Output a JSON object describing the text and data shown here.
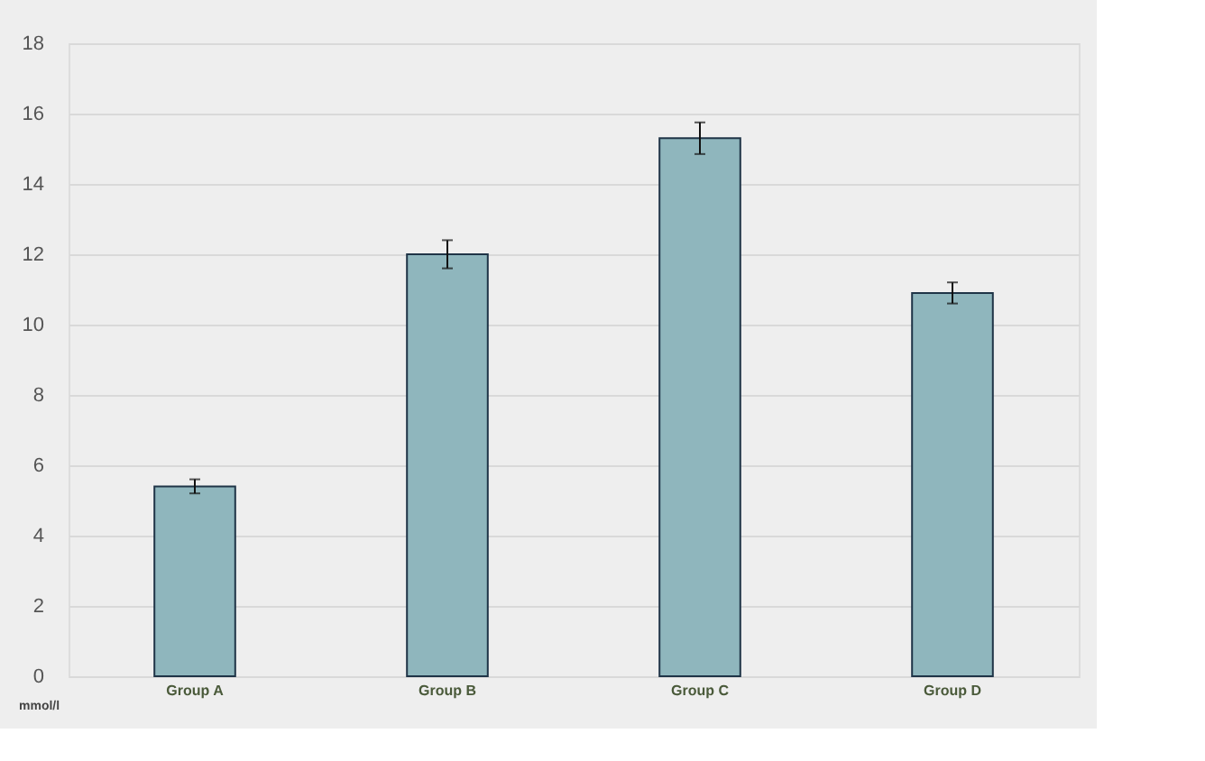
{
  "chart_data": {
    "type": "bar",
    "ylabel": "mmol/l",
    "categories": [
      "Group A",
      "Group B",
      "Group C",
      "Group D"
    ],
    "values": [
      5.4,
      12.0,
      15.3,
      10.9
    ],
    "errors": [
      0.2,
      0.4,
      0.45,
      0.3
    ],
    "color": "#8fb6bd",
    "ylim": [
      0,
      18
    ],
    "yticks": [
      0,
      2,
      4,
      6,
      8,
      10,
      12,
      14,
      16,
      18
    ],
    "grid": true
  }
}
